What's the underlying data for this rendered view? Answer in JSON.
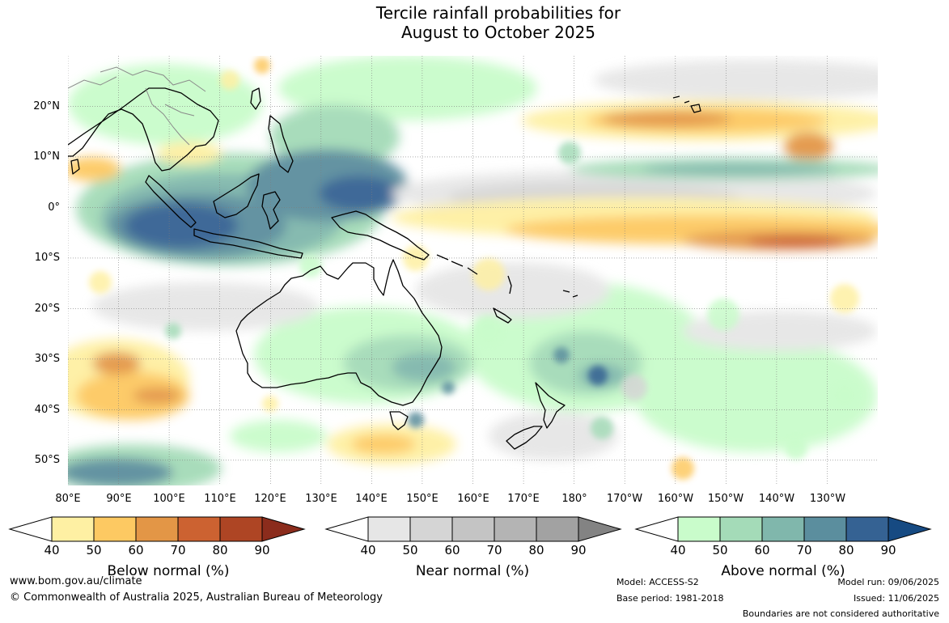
{
  "title": {
    "line1": "Tercile rainfall probabilities for",
    "line2": "August to October 2025"
  },
  "map": {
    "lat_labels": [
      "20°N",
      "10°N",
      "0°",
      "10°S",
      "20°S",
      "30°S",
      "40°S",
      "50°S"
    ],
    "lat_values": [
      20,
      10,
      0,
      -10,
      -20,
      -30,
      -40,
      -50
    ],
    "lon_labels": [
      "80°E",
      "90°E",
      "100°E",
      "110°E",
      "120°E",
      "130°E",
      "140°E",
      "150°E",
      "160°E",
      "170°E",
      "180°",
      "170°W",
      "160°W",
      "150°W",
      "140°W",
      "130°W"
    ],
    "lon_values": [
      80,
      90,
      100,
      110,
      120,
      130,
      140,
      150,
      160,
      170,
      180,
      190,
      200,
      210,
      220,
      230
    ],
    "lon_range": [
      80,
      240
    ],
    "lat_range": [
      -55,
      30
    ]
  },
  "colorbars": [
    {
      "id": "below",
      "title": "Below normal (%)",
      "ticks": [
        "40",
        "50",
        "60",
        "70",
        "80",
        "90"
      ],
      "colors": [
        "#fef0a3",
        "#fdc962",
        "#e39646",
        "#cc6231",
        "#ae4524",
        "#8b2c1c"
      ]
    },
    {
      "id": "near",
      "title": "Near normal (%)",
      "ticks": [
        "40",
        "50",
        "60",
        "70",
        "80",
        "90"
      ],
      "colors": [
        "#e6e6e6",
        "#d5d5d5",
        "#c4c4c4",
        "#b4b4b4",
        "#a2a2a2",
        "#838383"
      ]
    },
    {
      "id": "above",
      "title": "Above normal (%)",
      "ticks": [
        "40",
        "50",
        "60",
        "70",
        "80",
        "90"
      ],
      "colors": [
        "#c9fccb",
        "#a4dbb8",
        "#80b7ac",
        "#5b8e9e",
        "#356293",
        "#164a82"
      ]
    }
  ],
  "footer": {
    "website": "www.bom.gov.au/climate",
    "copyright": "© Commonwealth of Australia 2025, Australian Bureau of Meteorology",
    "model": "Model: ACCESS-S2",
    "base_period": "Base period: 1981-2018",
    "model_run": "Model run: 09/06/2025",
    "issued": "Issued: 11/06/2025",
    "boundaries_note": "Boundaries are not considered authoritative"
  }
}
